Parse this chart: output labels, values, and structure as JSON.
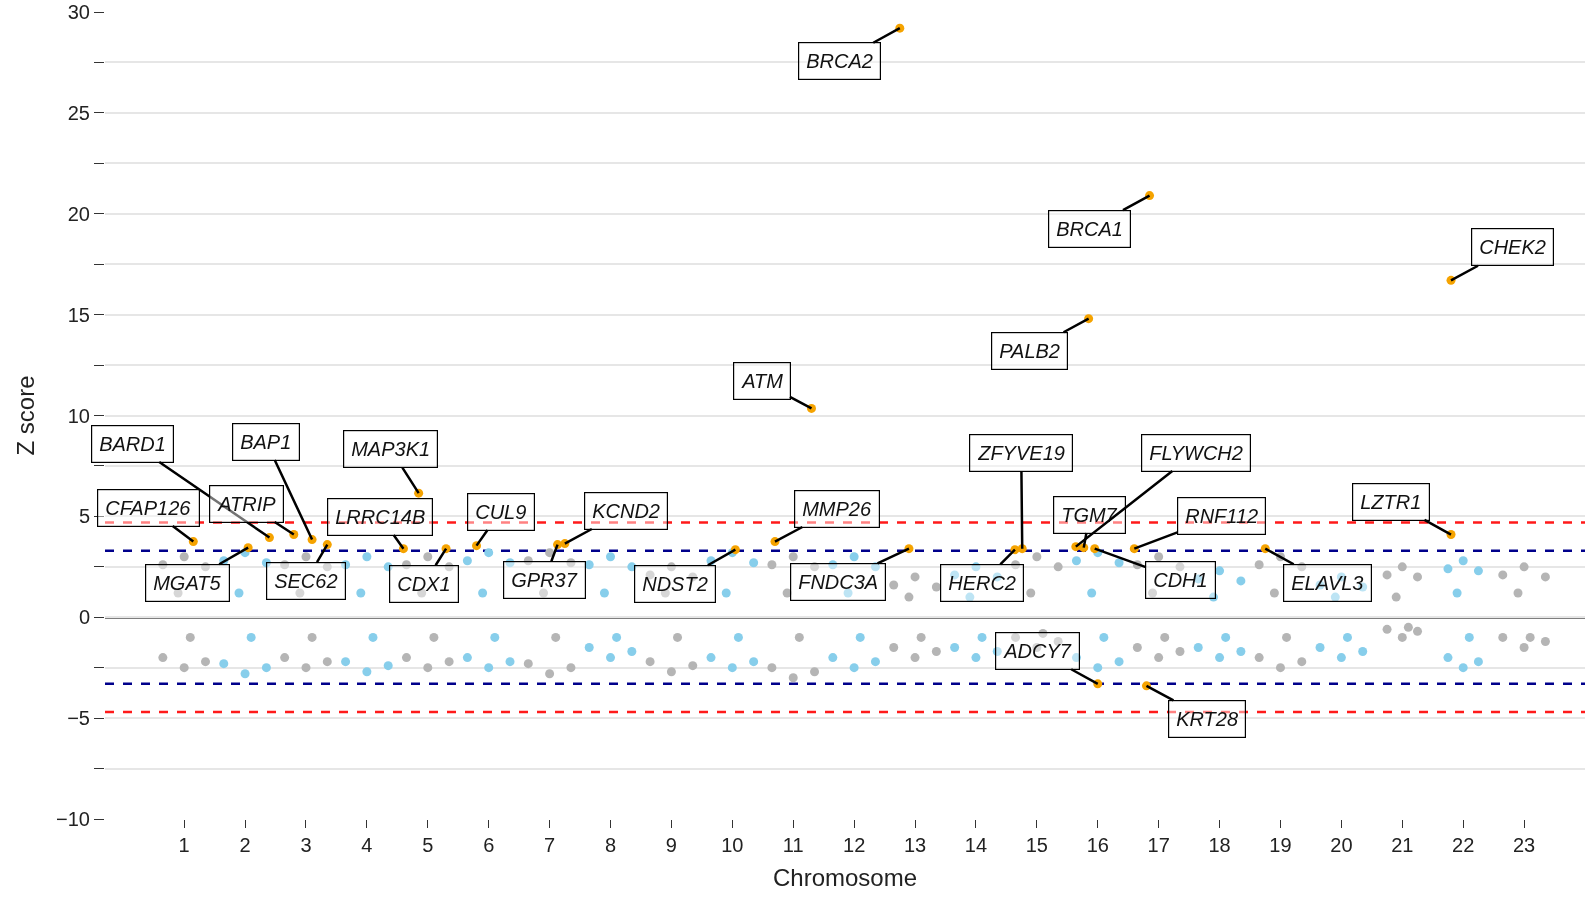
{
  "chart_data": {
    "type": "scatter",
    "xlabel": "Chromosome",
    "ylabel": "Z score",
    "xlim": [
      -0.3,
      24
    ],
    "xticks": [
      1,
      2,
      3,
      4,
      5,
      6,
      7,
      8,
      9,
      10,
      11,
      12,
      13,
      14,
      15,
      16,
      17,
      18,
      19,
      20,
      21,
      22,
      23
    ],
    "ylim": [
      -10,
      30
    ],
    "yticks": [
      {
        "value": -10,
        "label": "−10"
      },
      {
        "value": -7.5,
        "label": null
      },
      {
        "value": -5,
        "label": "−5"
      },
      {
        "value": -2.5,
        "label": null
      },
      0,
      {
        "value": 2.5,
        "label": null
      },
      5,
      {
        "value": 7.5,
        "label": null
      },
      10,
      {
        "value": 12.5,
        "label": null
      },
      15,
      {
        "value": 17.5,
        "label": null
      },
      20,
      {
        "value": 22.5,
        "label": null
      },
      25,
      {
        "value": 27.5,
        "label": null
      },
      30
    ],
    "grid": "y",
    "marker": "circle",
    "series": [
      {
        "color": "#b5b5b5",
        "x": [
          0.65,
          1,
          1.35,
          0.65,
          1,
          1.35,
          0.9,
          1.1,
          2.65,
          3,
          3.35,
          2.65,
          3,
          3.35,
          2.9,
          3.1,
          4.65,
          5,
          5.35,
          4.65,
          5,
          5.35,
          4.9,
          5.1,
          6.65,
          7,
          7.35,
          6.65,
          7,
          7.35,
          6.9,
          7.1,
          8.65,
          9,
          9.35,
          8.65,
          9,
          9.35,
          8.9,
          9.1,
          10.65,
          11,
          11.35,
          10.65,
          11,
          11.35,
          10.9,
          11.1,
          12.65,
          13,
          13.35,
          12.65,
          13,
          13.35,
          12.9,
          13.1,
          14.65,
          15,
          15.35,
          14.65,
          15,
          15.35,
          14.9,
          15.1,
          16.65,
          17,
          17.35,
          16.65,
          17,
          17.35,
          16.9,
          17.1,
          18.65,
          19,
          19.35,
          18.65,
          19,
          19.35,
          18.9,
          19.1,
          20.75,
          21,
          21.25,
          20.75,
          21,
          21.25,
          20.9,
          21.1,
          22.65,
          23,
          23.35,
          22.65,
          23,
          23.35,
          22.9,
          23.1
        ],
        "values": [
          2.6,
          3.0,
          2.5,
          -2.0,
          -2.5,
          -2.2,
          1.2,
          -1.0,
          2.6,
          3.0,
          2.5,
          -2.0,
          -2.5,
          -2.2,
          1.2,
          -1.0,
          2.6,
          3.0,
          2.5,
          -2.0,
          -2.5,
          -2.2,
          1.2,
          -1.0,
          2.8,
          3.2,
          2.7,
          -2.3,
          -2.8,
          -2.5,
          1.2,
          -1.0,
          2.1,
          2.5,
          2.0,
          -2.2,
          -2.7,
          -2.4,
          1.2,
          -1.0,
          2.6,
          3.0,
          2.5,
          -2.5,
          -3.0,
          -2.7,
          1.2,
          -1.0,
          1.6,
          2.0,
          1.5,
          -1.5,
          -2.0,
          -1.7,
          1.0,
          -1.0,
          2.6,
          3.0,
          2.5,
          -1.0,
          -1.5,
          -1.2,
          1.2,
          -0.8,
          2.6,
          3.0,
          2.5,
          -1.5,
          -2.0,
          -1.7,
          1.2,
          -1.0,
          2.6,
          3.0,
          2.5,
          -2.0,
          -2.5,
          -2.2,
          1.2,
          -1.0,
          2.1,
          2.5,
          2.0,
          -0.6,
          -1.0,
          -0.7,
          1.0,
          -0.5,
          2.1,
          2.5,
          2.0,
          -1.0,
          -1.5,
          -1.2,
          1.2,
          -1.0
        ]
      },
      {
        "color": "#87ceeb",
        "x": [
          1.65,
          2,
          2.35,
          1.65,
          2,
          2.35,
          1.9,
          2.1,
          3.65,
          4,
          4.35,
          3.65,
          4,
          4.35,
          3.9,
          4.1,
          5.65,
          6,
          6.35,
          5.65,
          6,
          6.35,
          5.9,
          6.1,
          7.65,
          8,
          8.35,
          7.65,
          8,
          8.35,
          7.9,
          8.1,
          9.65,
          10,
          10.35,
          9.65,
          10,
          10.35,
          9.9,
          10.1,
          11.65,
          12,
          12.35,
          11.65,
          12,
          12.35,
          11.9,
          12.1,
          13.65,
          14,
          14.35,
          13.65,
          14,
          14.35,
          13.9,
          14.1,
          15.65,
          16,
          16.35,
          15.65,
          16,
          16.35,
          15.9,
          16.1,
          17.65,
          18,
          18.35,
          17.65,
          18,
          18.35,
          17.9,
          18.1,
          19.65,
          20,
          20.35,
          19.65,
          20,
          20.35,
          19.9,
          20.1,
          21.75,
          22,
          22.25,
          21.75,
          22,
          22.25,
          21.9,
          22.1
        ],
        "values": [
          2.8,
          3.2,
          2.7,
          -2.3,
          -2.8,
          -2.5,
          1.2,
          -1.0,
          2.6,
          3.0,
          2.5,
          -2.2,
          -2.7,
          -2.4,
          1.2,
          -1.0,
          2.8,
          3.2,
          2.7,
          -2.0,
          -2.5,
          -2.2,
          1.2,
          -1.0,
          2.6,
          3.0,
          2.5,
          -1.5,
          -2.0,
          -1.7,
          1.2,
          -1.0,
          2.8,
          3.2,
          2.7,
          -2.0,
          -2.5,
          -2.2,
          1.2,
          -1.0,
          2.6,
          3.0,
          2.5,
          -2.0,
          -2.5,
          -2.2,
          1.2,
          -1.0,
          2.1,
          2.5,
          2.0,
          -1.5,
          -2.0,
          -1.7,
          1.0,
          -1.0,
          2.8,
          3.2,
          2.7,
          -2.0,
          -2.5,
          -2.2,
          1.2,
          -1.0,
          1.9,
          2.3,
          1.8,
          -1.5,
          -2.0,
          -1.7,
          1.0,
          -1.0,
          1.6,
          2.0,
          1.5,
          -1.5,
          -2.0,
          -1.7,
          1.0,
          -1.0,
          2.4,
          2.8,
          2.3,
          -2.0,
          -2.5,
          -2.2,
          1.2,
          -1.0
        ]
      },
      {
        "color": "#f5a300",
        "x": [
          12.75,
          16.85,
          21.8,
          15.85,
          11.3,
          4.85,
          2.4,
          2.8,
          3.1,
          1.15,
          2.05,
          3.35,
          4.6,
          5.3,
          5.8,
          7.25,
          7.13,
          10.05,
          10.7,
          12.9,
          14.76,
          14.64,
          15.77,
          15.64,
          15.95,
          16.6,
          18.75,
          21.8,
          16.0,
          16.8
        ],
        "values": [
          29.2,
          20.9,
          16.7,
          14.8,
          10.35,
          6.15,
          3.95,
          4.1,
          3.85,
          3.75,
          3.45,
          3.6,
          3.4,
          3.4,
          3.55,
          3.65,
          3.6,
          3.35,
          3.75,
          3.4,
          3.4,
          3.35,
          3.45,
          3.5,
          3.4,
          3.4,
          3.4,
          4.1,
          -3.3,
          -3.4
        ]
      }
    ],
    "annotations": [
      {
        "text": "BRCA2",
        "x": 12.75,
        "y": 29.2
      },
      {
        "text": "BRCA1",
        "x": 16.85,
        "y": 20.9
      },
      {
        "text": "CHEK2",
        "x": 21.8,
        "y": 16.7
      },
      {
        "text": "PALB2",
        "x": 15.85,
        "y": 14.8
      },
      {
        "text": "ATM",
        "x": 11.3,
        "y": 10.35
      },
      {
        "text": "MAP3K1",
        "x": 4.85,
        "y": 6.15
      },
      {
        "text": "BARD1",
        "x": 2.4,
        "y": 3.95
      },
      {
        "text": "ATRIP",
        "x": 2.8,
        "y": 4.1
      },
      {
        "text": "BAP1",
        "x": 3.1,
        "y": 3.85
      },
      {
        "text": "CFAP126",
        "x": 1.15,
        "y": 3.75
      },
      {
        "text": "MGAT5",
        "x": 2.05,
        "y": 3.45
      },
      {
        "text": "SEC62",
        "x": 3.35,
        "y": 3.6
      },
      {
        "text": "LRRC14B",
        "x": 4.6,
        "y": 3.4
      },
      {
        "text": "CDX1",
        "x": 5.3,
        "y": 3.4
      },
      {
        "text": "CUL9",
        "x": 5.8,
        "y": 3.55
      },
      {
        "text": "KCND2",
        "x": 7.25,
        "y": 3.65
      },
      {
        "text": "GPR37",
        "x": 7.13,
        "y": 3.6
      },
      {
        "text": "NDST2",
        "x": 10.05,
        "y": 3.35
      },
      {
        "text": "MMP26",
        "x": 10.7,
        "y": 3.75
      },
      {
        "text": "FNDC3A",
        "x": 12.9,
        "y": 3.4
      },
      {
        "text": "ZFYVE19",
        "x": 14.76,
        "y": 3.4
      },
      {
        "text": "HERC2",
        "x": 14.64,
        "y": 3.35
      },
      {
        "text": "TGM7",
        "x": 15.77,
        "y": 3.45
      },
      {
        "text": "FLYWCH2",
        "x": 15.64,
        "y": 3.5
      },
      {
        "text": "CDH1",
        "x": 15.95,
        "y": 3.4
      },
      {
        "text": "RNF112",
        "x": 16.6,
        "y": 3.4
      },
      {
        "text": "ELAVL3",
        "x": 18.75,
        "y": 3.4
      },
      {
        "text": "LZTR1",
        "x": 21.8,
        "y": 4.1
      },
      {
        "text": "ADCY7",
        "x": 16.0,
        "y": -3.3
      },
      {
        "text": "KRT28",
        "x": 16.8,
        "y": -3.4
      }
    ],
    "ref_lines": [
      {
        "axis": "y",
        "value": 4.7,
        "color": "#ff1a1a",
        "line_style": "dashed"
      },
      {
        "axis": "y",
        "value": 3.3,
        "color": "#00008b",
        "line_style": "dashed"
      },
      {
        "axis": "y",
        "value": 0,
        "color": "#000000",
        "line_style": "solid"
      },
      {
        "axis": "y",
        "value": -3.3,
        "color": "#00008b",
        "line_style": "dashed"
      },
      {
        "axis": "y",
        "value": -4.7,
        "color": "#ff1a1a",
        "line_style": "dashed"
      }
    ]
  }
}
